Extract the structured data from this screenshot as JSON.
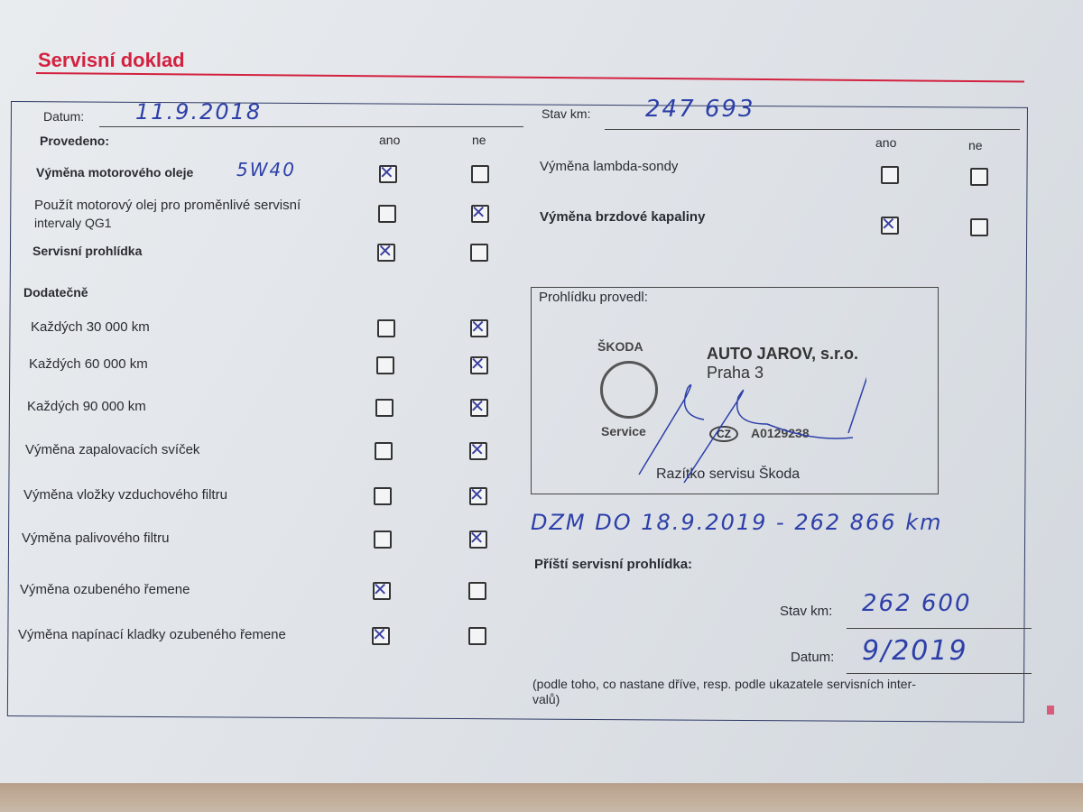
{
  "title": "Servisní doklad",
  "header": {
    "datum_label": "Datum:",
    "datum_value": "11.9.2018",
    "stav_label": "Stav km:",
    "stav_value": "247 693"
  },
  "columns": {
    "ano": "ano",
    "ne": "ne"
  },
  "provedeno_label": "Provedeno:",
  "dodatecne_label": "Dodatečně",
  "oil_grade": "5W40",
  "left_items": [
    {
      "label": "Výměna motorového oleje",
      "bold": true,
      "ano": true,
      "ne": false
    },
    {
      "label": "Použít motorový olej pro proměnlivé servisní",
      "label2": "intervaly QG1",
      "bold": false,
      "ano": false,
      "ne": true
    },
    {
      "label": "Servisní prohlídka",
      "bold": true,
      "ano": true,
      "ne": false
    },
    {
      "label": "Každých 30 000 km",
      "ano": false,
      "ne": true
    },
    {
      "label": "Každých 60 000 km",
      "ano": false,
      "ne": true
    },
    {
      "label": "Každých 90 000 km",
      "ano": false,
      "ne": true
    },
    {
      "label": "Výměna zapalovacích svíček",
      "ano": false,
      "ne": true
    },
    {
      "label": "Výměna vložky vzduchového filtru",
      "ano": false,
      "ne": true
    },
    {
      "label": "Výměna palivového filtru",
      "ano": false,
      "ne": true
    },
    {
      "label": "Výměna ozubeného řemene",
      "ano": true,
      "ne": false
    },
    {
      "label": "Výměna napínací kladky ozubeného řemene",
      "ano": true,
      "ne": false
    }
  ],
  "right_items": [
    {
      "label": "Výměna lambda-sondy",
      "bold": false,
      "ano": false,
      "ne": false
    },
    {
      "label": "Výměna brzdové kapaliny",
      "bold": true,
      "ano": true,
      "ne": false
    }
  ],
  "stamp": {
    "label": "Prohlídku provedl:",
    "brand": "ŠKODA",
    "service": "Service",
    "company": "AUTO JAROV, s.r.o.",
    "city": "Praha 3",
    "country": "CZ",
    "code": "A0129238",
    "caption": "Razítko servisu Škoda"
  },
  "note_handwritten": "DZM DO 18.9.2019 - 262 866 km",
  "next": {
    "title": "Příští servisní prohlídka:",
    "stav_label": "Stav km:",
    "stav_value": "262 600",
    "datum_label": "Datum:",
    "datum_value": "9/2019",
    "footnote": "(podle toho, co nastane dříve, resp. podle ukazatele servisních inter-",
    "footnote2": "valů)"
  }
}
